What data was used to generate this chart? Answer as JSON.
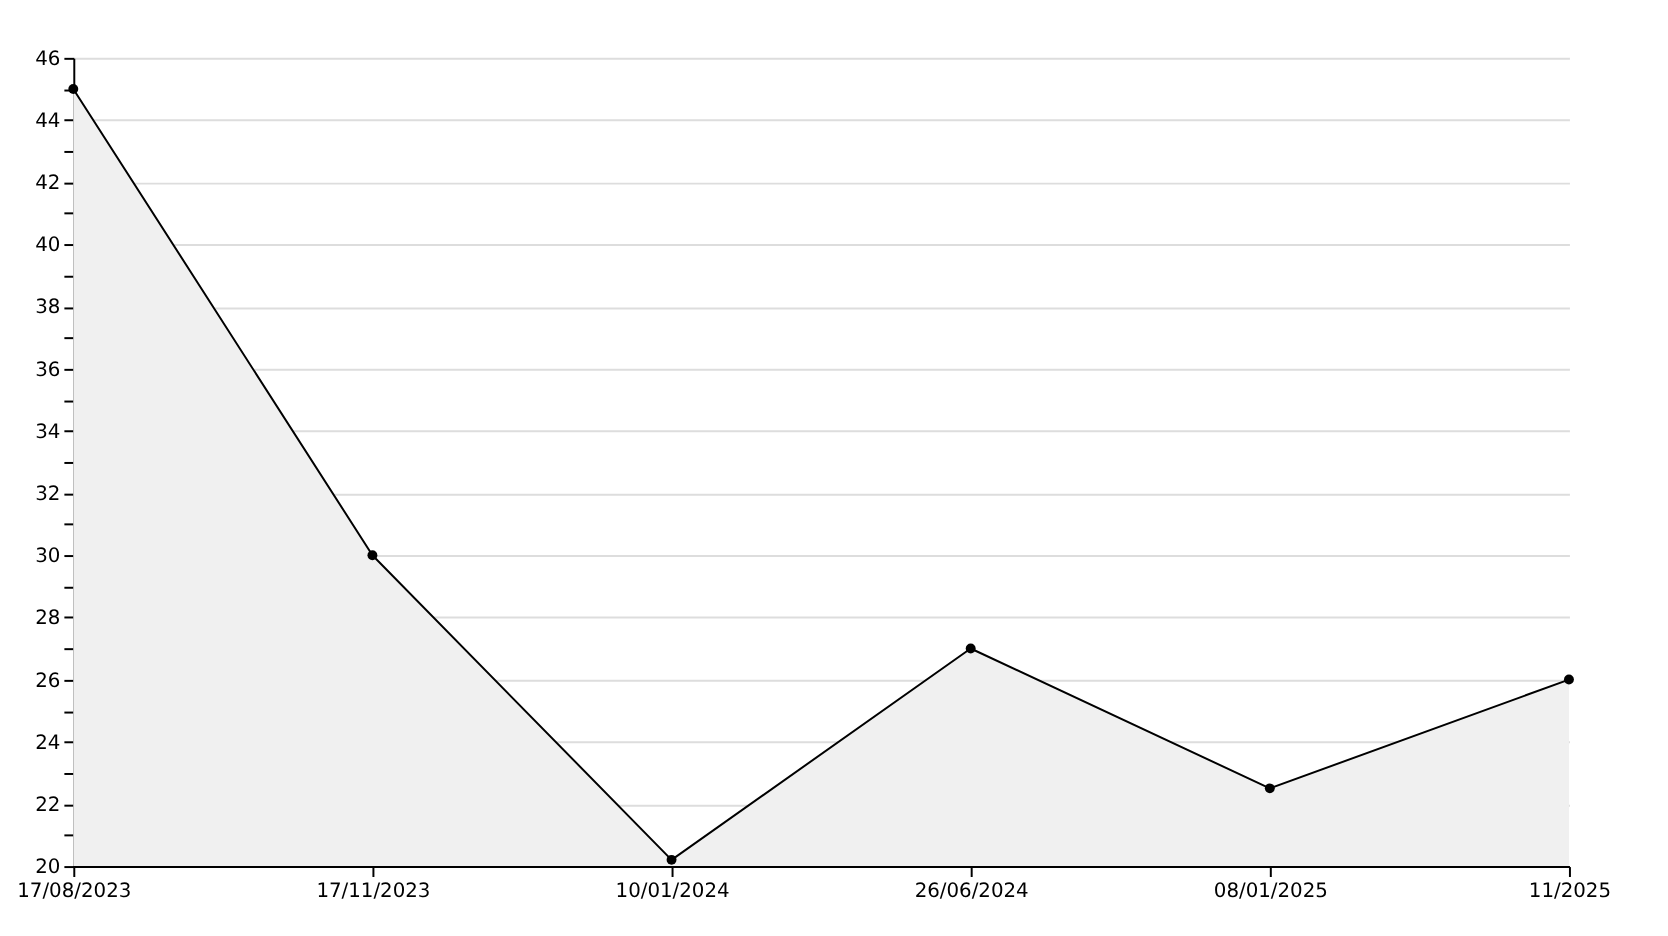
{
  "chart_data": {
    "type": "area",
    "categories": [
      "17/08/2023",
      "17/11/2023",
      "10/01/2024",
      "26/06/2024",
      "08/01/2025",
      "11/2025"
    ],
    "series": [
      {
        "color": "#f0f0f0",
        "values": [
          45,
          30,
          20.2,
          27,
          22.5,
          26
        ]
      }
    ],
    "ylim": [
      20,
      46
    ],
    "yticks": [
      20,
      {
        "value": 21,
        "label": null
      },
      22,
      {
        "value": 23,
        "label": null
      },
      24,
      {
        "value": 25,
        "label": null
      },
      26,
      {
        "value": 27,
        "label": null
      },
      28,
      {
        "value": 29,
        "label": null
      },
      30,
      {
        "value": 31,
        "label": null
      },
      32,
      {
        "value": 33,
        "label": null
      },
      34,
      {
        "value": 35,
        "label": null
      },
      36,
      {
        "value": 37,
        "label": null
      },
      38,
      {
        "value": 39,
        "label": null
      },
      40,
      {
        "value": 41,
        "label": null
      },
      42,
      {
        "value": 43,
        "label": null
      },
      44,
      {
        "value": 45,
        "label": null
      },
      46
    ],
    "grid": "y",
    "marker": "circle",
    "line_style": "solid"
  }
}
